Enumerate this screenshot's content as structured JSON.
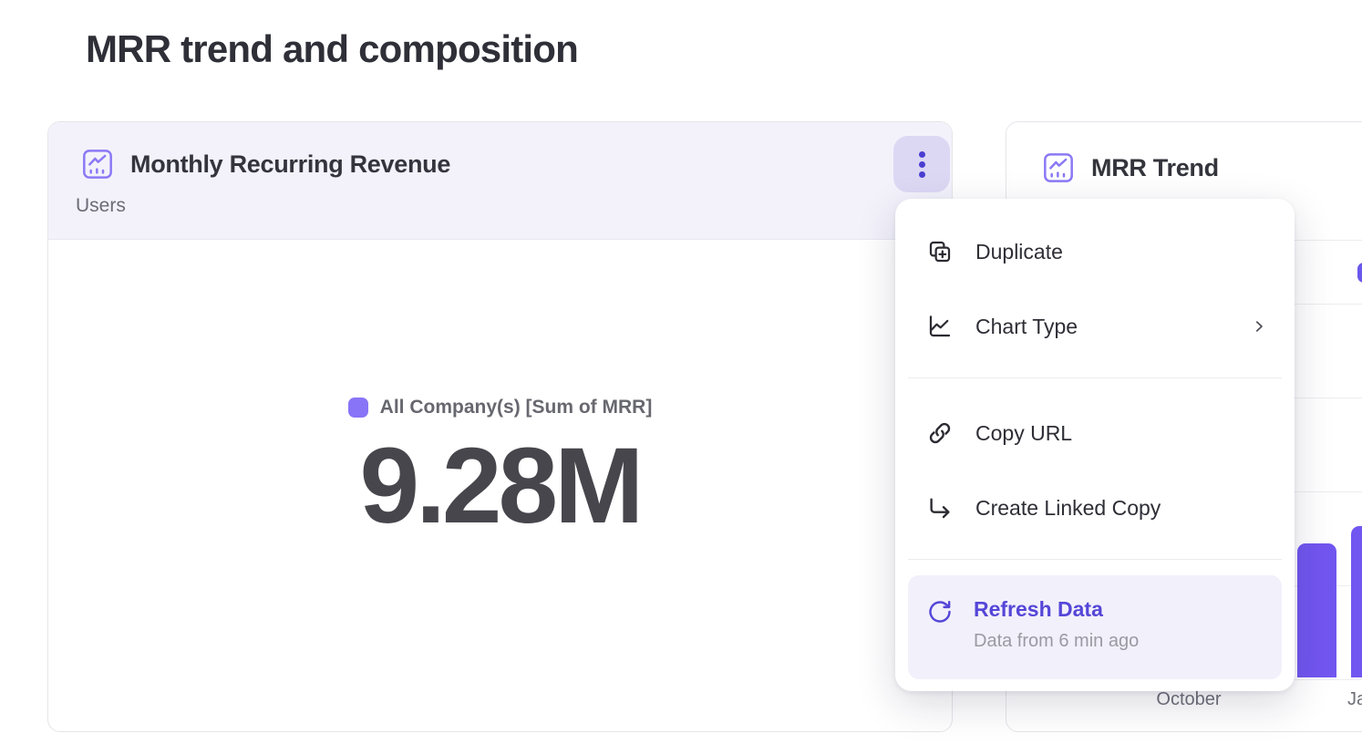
{
  "page": {
    "title": "MRR trend and composition"
  },
  "kpi_card": {
    "title": "Monthly Recurring Revenue",
    "subtitle": "Users",
    "legend_label": "All Company(s) [Sum of MRR]",
    "value": "9.28M",
    "accent_color": "#8874f7",
    "header_background": "#f3f2fb"
  },
  "trend_card": {
    "title": "MRR Trend",
    "x_labels": {
      "october": "October",
      "ja_truncated": "Ja"
    },
    "bar_color": "#7256f0"
  },
  "context_menu": {
    "items": [
      {
        "label": "Duplicate",
        "icon": "duplicate-icon"
      },
      {
        "label": "Chart Type",
        "icon": "chart-type-icon",
        "has_submenu": true
      },
      {
        "label": "Copy URL",
        "icon": "link-icon"
      },
      {
        "label": "Create Linked Copy",
        "icon": "linked-copy-icon"
      }
    ],
    "refresh": {
      "label": "Refresh Data",
      "sublabel": "Data from 6 min ago",
      "icon": "refresh-icon",
      "accent_color": "#5546d8",
      "highlight_background": "#f2f0fb"
    }
  },
  "chart_data": [
    {
      "type": "big-number",
      "title": "Monthly Recurring Revenue",
      "subtitle": "Users",
      "series_label": "All Company(s) [Sum of MRR]",
      "value_display": "9.28M",
      "value_numeric_estimate": 9280000
    },
    {
      "type": "bar",
      "title": "MRR Trend",
      "visible_categories": [
        "October",
        "Ja (clipped, likely January)"
      ],
      "series": [
        {
          "name": "MRR",
          "values_gridline_units": [
            1.43,
            1.61
          ],
          "note": "Two bars visible right of the open menu; y-axis tick values hidden, heights estimated relative to gridline spacing"
        }
      ],
      "gridlines": true,
      "gridline_count_visible": 5,
      "legend_position": "top (swatch clipped at viewport right edge)",
      "bar_color": "#7256f0"
    }
  ]
}
